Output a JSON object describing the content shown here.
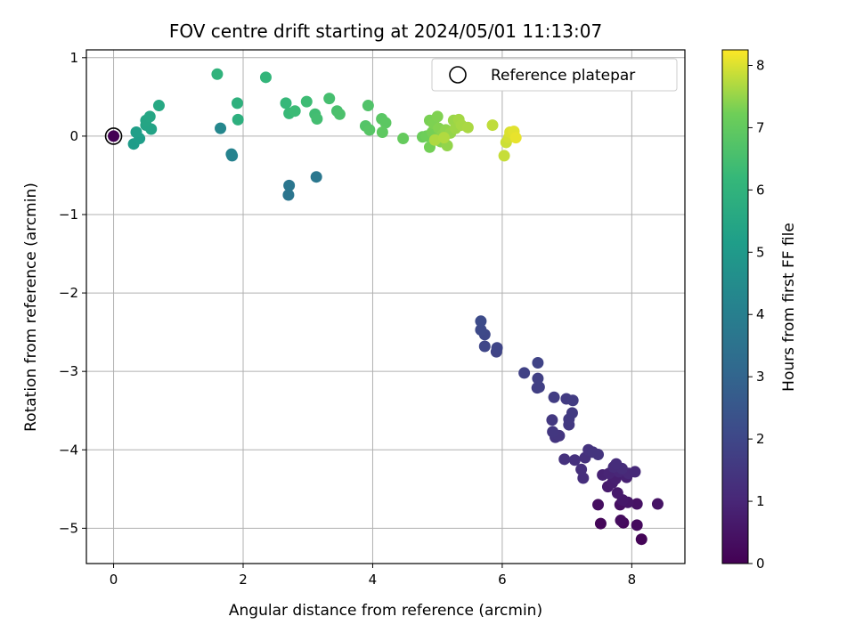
{
  "chart_data": {
    "type": "scatter",
    "title": "FOV centre drift starting at 2024/05/01 11:13:07",
    "xlabel": "Angular distance from reference (arcmin)",
    "ylabel": "Rotation from reference (arcmin)",
    "xlim": [
      -0.42,
      8.82
    ],
    "ylim": [
      -5.45,
      1.1
    ],
    "xticks": [
      0,
      2,
      4,
      6,
      8
    ],
    "xtick_labels": [
      "0",
      "2",
      "4",
      "6",
      "8"
    ],
    "yticks": [
      1,
      0,
      -1,
      -2,
      -3,
      -4,
      -5
    ],
    "ytick_labels": [
      "1",
      "0",
      "−1",
      "−2",
      "−3",
      "−4",
      "−5"
    ],
    "grid": true,
    "legend": {
      "label": "Reference platepar",
      "position": "top-right",
      "marker": "open-circle"
    },
    "colorbar": {
      "label": "Hours from first FF file",
      "colormap": "viridis",
      "range": [
        0,
        8.25
      ],
      "ticks": [
        0,
        1,
        2,
        3,
        4,
        5,
        6,
        7,
        8
      ],
      "tick_labels": [
        "0",
        "1",
        "2",
        "3",
        "4",
        "5",
        "6",
        "7",
        "8"
      ]
    },
    "reference_point": {
      "x": 0,
      "y": 0,
      "c": 0
    },
    "points": [
      {
        "x": 8.15,
        "y": -5.14,
        "c": 0.1
      },
      {
        "x": 7.52,
        "y": -4.94,
        "c": 0.15
      },
      {
        "x": 7.87,
        "y": -4.93,
        "c": 0.2
      },
      {
        "x": 8.08,
        "y": -4.96,
        "c": 0.25
      },
      {
        "x": 7.83,
        "y": -4.9,
        "c": 0.3
      },
      {
        "x": 7.48,
        "y": -4.7,
        "c": 0.35
      },
      {
        "x": 7.82,
        "y": -4.7,
        "c": 0.4
      },
      {
        "x": 8.08,
        "y": -4.69,
        "c": 0.45
      },
      {
        "x": 8.4,
        "y": -4.69,
        "c": 0.5
      },
      {
        "x": 7.94,
        "y": -4.67,
        "c": 0.55
      },
      {
        "x": 7.86,
        "y": -4.64,
        "c": 0.6
      },
      {
        "x": 7.78,
        "y": -4.55,
        "c": 0.65
      },
      {
        "x": 7.63,
        "y": -4.47,
        "c": 0.7
      },
      {
        "x": 7.7,
        "y": -4.42,
        "c": 0.75
      },
      {
        "x": 7.75,
        "y": -4.37,
        "c": 0.8
      },
      {
        "x": 7.92,
        "y": -4.35,
        "c": 0.85
      },
      {
        "x": 7.55,
        "y": -4.32,
        "c": 0.9
      },
      {
        "x": 7.65,
        "y": -4.3,
        "c": 0.95
      },
      {
        "x": 7.8,
        "y": -4.28,
        "c": 1.0
      },
      {
        "x": 7.95,
        "y": -4.3,
        "c": 1.05
      },
      {
        "x": 8.05,
        "y": -4.28,
        "c": 1.1
      },
      {
        "x": 7.72,
        "y": -4.22,
        "c": 1.15
      },
      {
        "x": 7.85,
        "y": -4.24,
        "c": 1.18
      },
      {
        "x": 7.76,
        "y": -4.18,
        "c": 1.2
      },
      {
        "x": 7.25,
        "y": -4.36,
        "c": 1.25
      },
      {
        "x": 7.22,
        "y": -4.25,
        "c": 1.28
      },
      {
        "x": 7.28,
        "y": -4.1,
        "c": 1.3
      },
      {
        "x": 7.12,
        "y": -4.13,
        "c": 1.32
      },
      {
        "x": 6.96,
        "y": -4.12,
        "c": 1.35
      },
      {
        "x": 7.33,
        "y": -4.0,
        "c": 1.38
      },
      {
        "x": 7.4,
        "y": -4.03,
        "c": 1.4
      },
      {
        "x": 7.48,
        "y": -4.06,
        "c": 1.42
      },
      {
        "x": 6.82,
        "y": -3.84,
        "c": 1.45
      },
      {
        "x": 6.88,
        "y": -3.82,
        "c": 1.48
      },
      {
        "x": 6.78,
        "y": -3.77,
        "c": 1.5
      },
      {
        "x": 6.77,
        "y": -3.62,
        "c": 1.52
      },
      {
        "x": 7.03,
        "y": -3.68,
        "c": 1.55
      },
      {
        "x": 7.03,
        "y": -3.61,
        "c": 1.58
      },
      {
        "x": 7.08,
        "y": -3.53,
        "c": 1.6
      },
      {
        "x": 6.99,
        "y": -3.35,
        "c": 1.62
      },
      {
        "x": 7.09,
        "y": -3.37,
        "c": 1.65
      },
      {
        "x": 6.8,
        "y": -3.33,
        "c": 1.68
      },
      {
        "x": 6.54,
        "y": -3.21,
        "c": 1.72
      },
      {
        "x": 6.57,
        "y": -3.2,
        "c": 1.75
      },
      {
        "x": 6.55,
        "y": -3.09,
        "c": 1.78
      },
      {
        "x": 6.34,
        "y": -3.02,
        "c": 1.82
      },
      {
        "x": 6.55,
        "y": -2.89,
        "c": 1.86
      },
      {
        "x": 5.91,
        "y": -2.75,
        "c": 1.9
      },
      {
        "x": 5.92,
        "y": -2.7,
        "c": 1.94
      },
      {
        "x": 5.73,
        "y": -2.68,
        "c": 1.98
      },
      {
        "x": 5.73,
        "y": -2.53,
        "c": 2.02
      },
      {
        "x": 5.67,
        "y": -2.47,
        "c": 2.08
      },
      {
        "x": 5.67,
        "y": -2.36,
        "c": 2.12
      },
      {
        "x": 2.7,
        "y": -0.75,
        "c": 3.6
      },
      {
        "x": 2.71,
        "y": -0.63,
        "c": 3.65
      },
      {
        "x": 3.13,
        "y": -0.52,
        "c": 3.7
      },
      {
        "x": 1.83,
        "y": -0.25,
        "c": 4.1
      },
      {
        "x": 1.82,
        "y": -0.23,
        "c": 4.15
      },
      {
        "x": 1.65,
        "y": 0.1,
        "c": 4.3
      },
      {
        "x": 0.31,
        "y": -0.1,
        "c": 5.1
      },
      {
        "x": 0.4,
        "y": -0.03,
        "c": 5.15
      },
      {
        "x": 0.35,
        "y": 0.05,
        "c": 5.2
      },
      {
        "x": 0.58,
        "y": 0.09,
        "c": 5.35
      },
      {
        "x": 0.5,
        "y": 0.14,
        "c": 5.4
      },
      {
        "x": 0.5,
        "y": 0.2,
        "c": 5.45
      },
      {
        "x": 0.56,
        "y": 0.25,
        "c": 5.5
      },
      {
        "x": 0.7,
        "y": 0.39,
        "c": 5.55
      },
      {
        "x": 1.92,
        "y": 0.21,
        "c": 5.85
      },
      {
        "x": 1.91,
        "y": 0.42,
        "c": 5.9
      },
      {
        "x": 1.6,
        "y": 0.79,
        "c": 6.0
      },
      {
        "x": 2.35,
        "y": 0.75,
        "c": 6.1
      },
      {
        "x": 2.66,
        "y": 0.42,
        "c": 6.2
      },
      {
        "x": 2.71,
        "y": 0.29,
        "c": 6.25
      },
      {
        "x": 2.8,
        "y": 0.32,
        "c": 6.3
      },
      {
        "x": 2.98,
        "y": 0.44,
        "c": 6.35
      },
      {
        "x": 3.11,
        "y": 0.28,
        "c": 6.4
      },
      {
        "x": 3.14,
        "y": 0.22,
        "c": 6.45
      },
      {
        "x": 3.33,
        "y": 0.48,
        "c": 6.5
      },
      {
        "x": 3.45,
        "y": 0.32,
        "c": 6.55
      },
      {
        "x": 3.49,
        "y": 0.28,
        "c": 6.6
      },
      {
        "x": 3.93,
        "y": 0.39,
        "c": 6.7
      },
      {
        "x": 3.89,
        "y": 0.13,
        "c": 6.75
      },
      {
        "x": 3.95,
        "y": 0.08,
        "c": 6.8
      },
      {
        "x": 4.14,
        "y": 0.22,
        "c": 6.85
      },
      {
        "x": 4.2,
        "y": 0.17,
        "c": 6.9
      },
      {
        "x": 4.15,
        "y": 0.05,
        "c": 6.95
      },
      {
        "x": 4.47,
        "y": -0.03,
        "c": 7.05
      },
      {
        "x": 4.77,
        "y": -0.01,
        "c": 7.15
      },
      {
        "x": 4.83,
        "y": 0.0,
        "c": 7.2
      },
      {
        "x": 4.88,
        "y": -0.14,
        "c": 7.25
      },
      {
        "x": 4.92,
        "y": 0.05,
        "c": 7.28
      },
      {
        "x": 4.88,
        "y": 0.2,
        "c": 7.3
      },
      {
        "x": 4.94,
        "y": 0.16,
        "c": 7.33
      },
      {
        "x": 5.0,
        "y": 0.25,
        "c": 7.35
      },
      {
        "x": 5.02,
        "y": 0.1,
        "c": 7.38
      },
      {
        "x": 5.05,
        "y": -0.07,
        "c": 7.4
      },
      {
        "x": 5.08,
        "y": 0.02,
        "c": 7.42
      },
      {
        "x": 5.13,
        "y": 0.08,
        "c": 7.45
      },
      {
        "x": 5.15,
        "y": -0.12,
        "c": 7.48
      },
      {
        "x": 5.2,
        "y": 0.04,
        "c": 7.5
      },
      {
        "x": 5.25,
        "y": 0.2,
        "c": 7.53
      },
      {
        "x": 5.28,
        "y": 0.1,
        "c": 7.56
      },
      {
        "x": 5.33,
        "y": 0.21,
        "c": 7.6
      },
      {
        "x": 5.37,
        "y": 0.14,
        "c": 7.62
      },
      {
        "x": 5.47,
        "y": 0.11,
        "c": 7.65
      },
      {
        "x": 4.96,
        "y": -0.05,
        "c": 7.68
      },
      {
        "x": 5.1,
        "y": -0.02,
        "c": 7.7
      },
      {
        "x": 5.85,
        "y": 0.14,
        "c": 7.8
      },
      {
        "x": 6.03,
        "y": -0.25,
        "c": 7.85
      },
      {
        "x": 6.06,
        "y": -0.08,
        "c": 7.9
      },
      {
        "x": 6.1,
        "y": -0.02,
        "c": 7.95
      },
      {
        "x": 6.12,
        "y": 0.05,
        "c": 8.0
      },
      {
        "x": 6.18,
        "y": 0.06,
        "c": 8.05
      },
      {
        "x": 6.21,
        "y": -0.02,
        "c": 8.1
      }
    ]
  }
}
